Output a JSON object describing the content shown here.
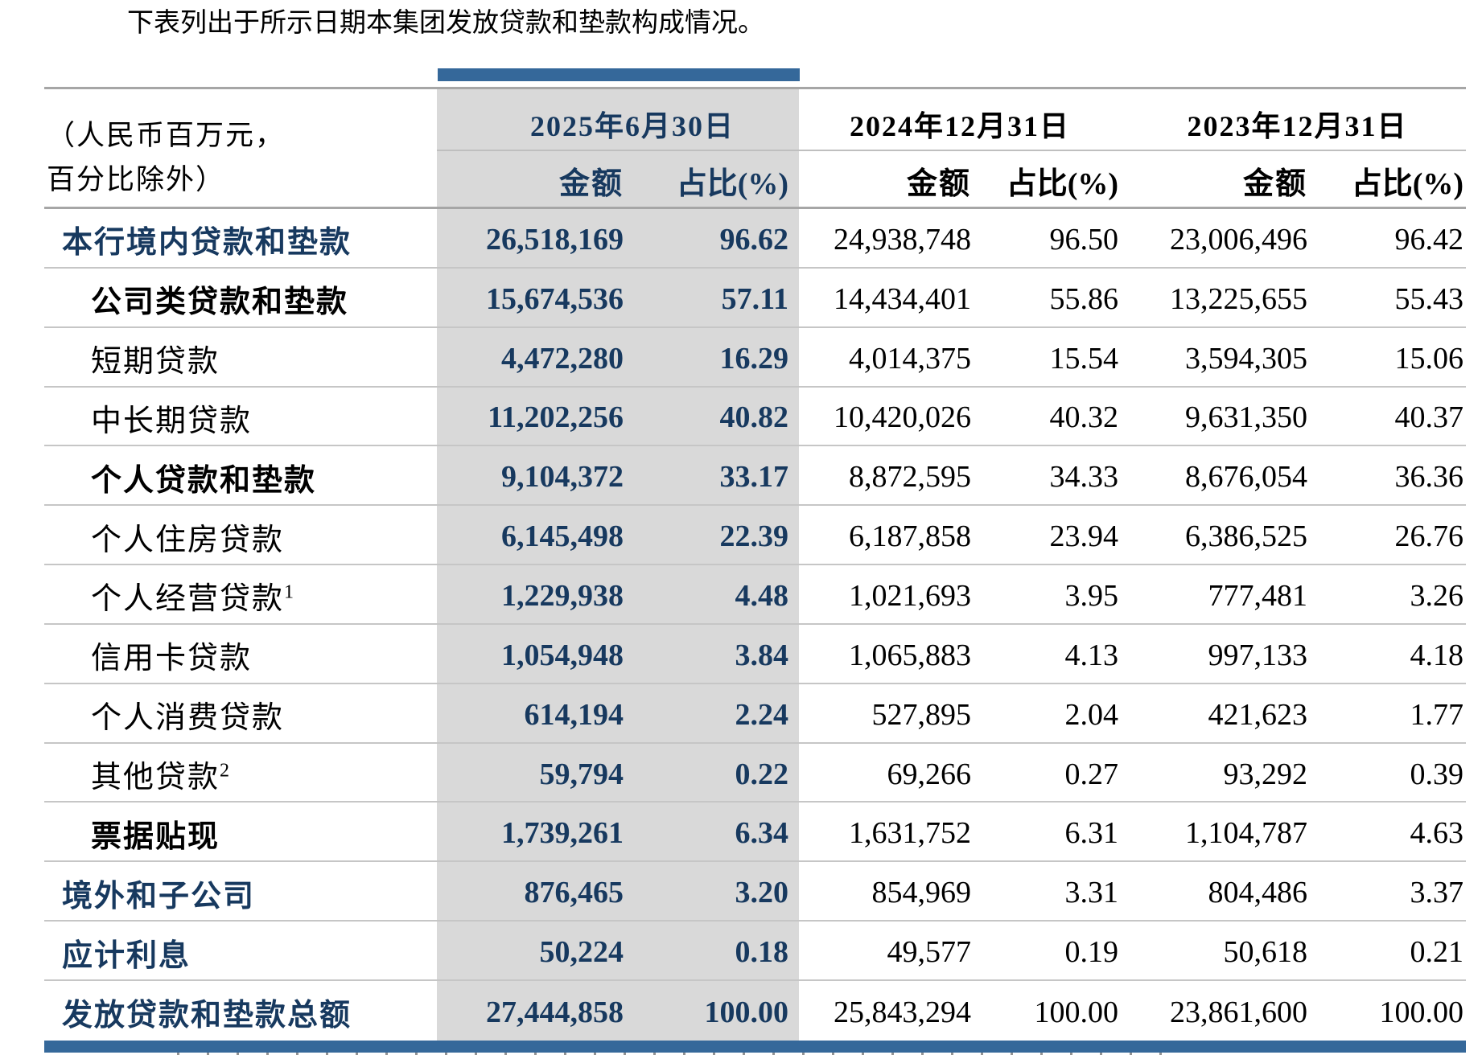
{
  "title": "下表列出于所示日期本集团发放贷款和垫款构成情况。",
  "table": {
    "unit_note_line1": "（人民币百万元，",
    "unit_note_line2": "百分比除外）",
    "col_groups": [
      {
        "date": "2025年6月30日",
        "amount_label": "金额",
        "pct_label": "占比(%)"
      },
      {
        "date": "2024年12月31日",
        "amount_label": "金额",
        "pct_label": "占比(%)"
      },
      {
        "date": "2023年12月31日",
        "amount_label": "金额",
        "pct_label": "占比(%)"
      }
    ],
    "rows": [
      {
        "label": "本行境内贷款和垫款",
        "sup": "",
        "a25": "26,518,169",
        "p25": "96.62",
        "a24": "24,938,748",
        "p24": "96.50",
        "a23": "23,006,496",
        "p23": "96.42"
      },
      {
        "label": "公司类贷款和垫款",
        "sup": "",
        "a25": "15,674,536",
        "p25": "57.11",
        "a24": "14,434,401",
        "p24": "55.86",
        "a23": "13,225,655",
        "p23": "55.43"
      },
      {
        "label": "短期贷款",
        "sup": "",
        "a25": "4,472,280",
        "p25": "16.29",
        "a24": "4,014,375",
        "p24": "15.54",
        "a23": "3,594,305",
        "p23": "15.06"
      },
      {
        "label": "中长期贷款",
        "sup": "",
        "a25": "11,202,256",
        "p25": "40.82",
        "a24": "10,420,026",
        "p24": "40.32",
        "a23": "9,631,350",
        "p23": "40.37"
      },
      {
        "label": "个人贷款和垫款",
        "sup": "",
        "a25": "9,104,372",
        "p25": "33.17",
        "a24": "8,872,595",
        "p24": "34.33",
        "a23": "8,676,054",
        "p23": "36.36"
      },
      {
        "label": "个人住房贷款",
        "sup": "",
        "a25": "6,145,498",
        "p25": "22.39",
        "a24": "6,187,858",
        "p24": "23.94",
        "a23": "6,386,525",
        "p23": "26.76"
      },
      {
        "label": "个人经营贷款",
        "sup": "1",
        "a25": "1,229,938",
        "p25": "4.48",
        "a24": "1,021,693",
        "p24": "3.95",
        "a23": "777,481",
        "p23": "3.26"
      },
      {
        "label": "信用卡贷款",
        "sup": "",
        "a25": "1,054,948",
        "p25": "3.84",
        "a24": "1,065,883",
        "p24": "4.13",
        "a23": "997,133",
        "p23": "4.18"
      },
      {
        "label": "个人消费贷款",
        "sup": "",
        "a25": "614,194",
        "p25": "2.24",
        "a24": "527,895",
        "p24": "2.04",
        "a23": "421,623",
        "p23": "1.77"
      },
      {
        "label": "其他贷款",
        "sup": "2",
        "a25": "59,794",
        "p25": "0.22",
        "a24": "69,266",
        "p24": "0.27",
        "a23": "93,292",
        "p23": "0.39"
      },
      {
        "label": "票据贴现",
        "sup": "",
        "a25": "1,739,261",
        "p25": "6.34",
        "a24": "1,631,752",
        "p24": "6.31",
        "a23": "1,104,787",
        "p23": "4.63"
      },
      {
        "label": "境外和子公司",
        "sup": "",
        "a25": "876,465",
        "p25": "3.20",
        "a24": "854,969",
        "p24": "3.31",
        "a23": "804,486",
        "p23": "3.37"
      },
      {
        "label": "应计利息",
        "sup": "",
        "a25": "50,224",
        "p25": "0.18",
        "a24": "49,577",
        "p24": "0.19",
        "a23": "50,618",
        "p23": "0.21"
      },
      {
        "label": "发放贷款和垫款总额",
        "sup": "",
        "a25": "27,444,858",
        "p25": "100.00",
        "a24": "25,843,294",
        "p24": "100.00",
        "a23": "23,861,600",
        "p23": "100.00"
      }
    ]
  },
  "colors": {
    "accent_bar": "#35689A",
    "navy_text": "#17395F",
    "highlight_band": "#D9D9D9",
    "row_line": "#C6C6C6",
    "heavy_line": "#A6A6A6"
  }
}
